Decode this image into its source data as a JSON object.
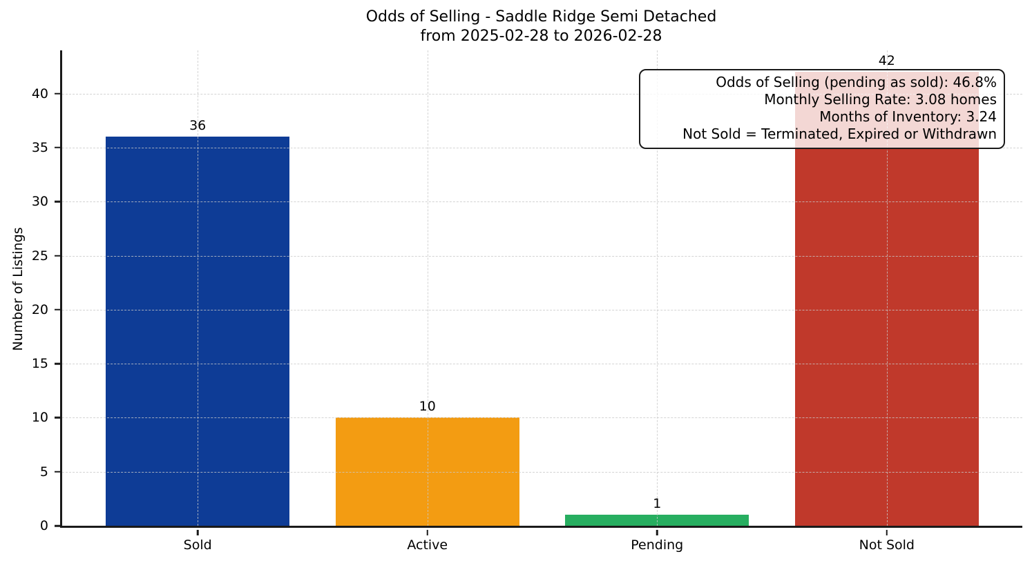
{
  "chart_data": {
    "type": "bar",
    "title": "Odds of Selling - Saddle Ridge Semi Detached\nfrom 2025-02-28 to 2026-02-28",
    "title_lines": [
      "Odds of Selling - Saddle Ridge Semi Detached",
      "from 2025-02-28 to 2026-02-28"
    ],
    "xlabel": "",
    "ylabel": "Number of Listings",
    "categories": [
      "Sold",
      "Active",
      "Pending",
      "Not Sold"
    ],
    "values": [
      36,
      10,
      1,
      42
    ],
    "bar_labels": [
      "36",
      "10",
      "1",
      "42"
    ],
    "bar_colors": [
      "#0e3c96",
      "#f39c12",
      "#27ae60",
      "#c0392b"
    ],
    "ylim": [
      0,
      44
    ],
    "xlim": [
      -0.59,
      3.59
    ],
    "yticks": [
      0,
      5,
      10,
      15,
      20,
      25,
      30,
      35,
      40
    ],
    "bar_width_units": 0.8,
    "grid": true,
    "grid_style": "dashed",
    "grid_above_bars": true,
    "legend": null,
    "annotation_box": {
      "position": "top-right",
      "lines": [
        "Odds of Selling (pending as sold): 46.8%",
        "Monthly Selling Rate: 3.08 homes",
        "Months of Inventory: 3.24",
        "Not Sold = Terminated, Expired or Withdrawn"
      ]
    }
  },
  "colors": {
    "background": "#ffffff",
    "axis": "#1a1a1a",
    "grid": "#cccccc",
    "text": "#000000",
    "annotation_background": "rgba(255,255,255,0.8)"
  }
}
